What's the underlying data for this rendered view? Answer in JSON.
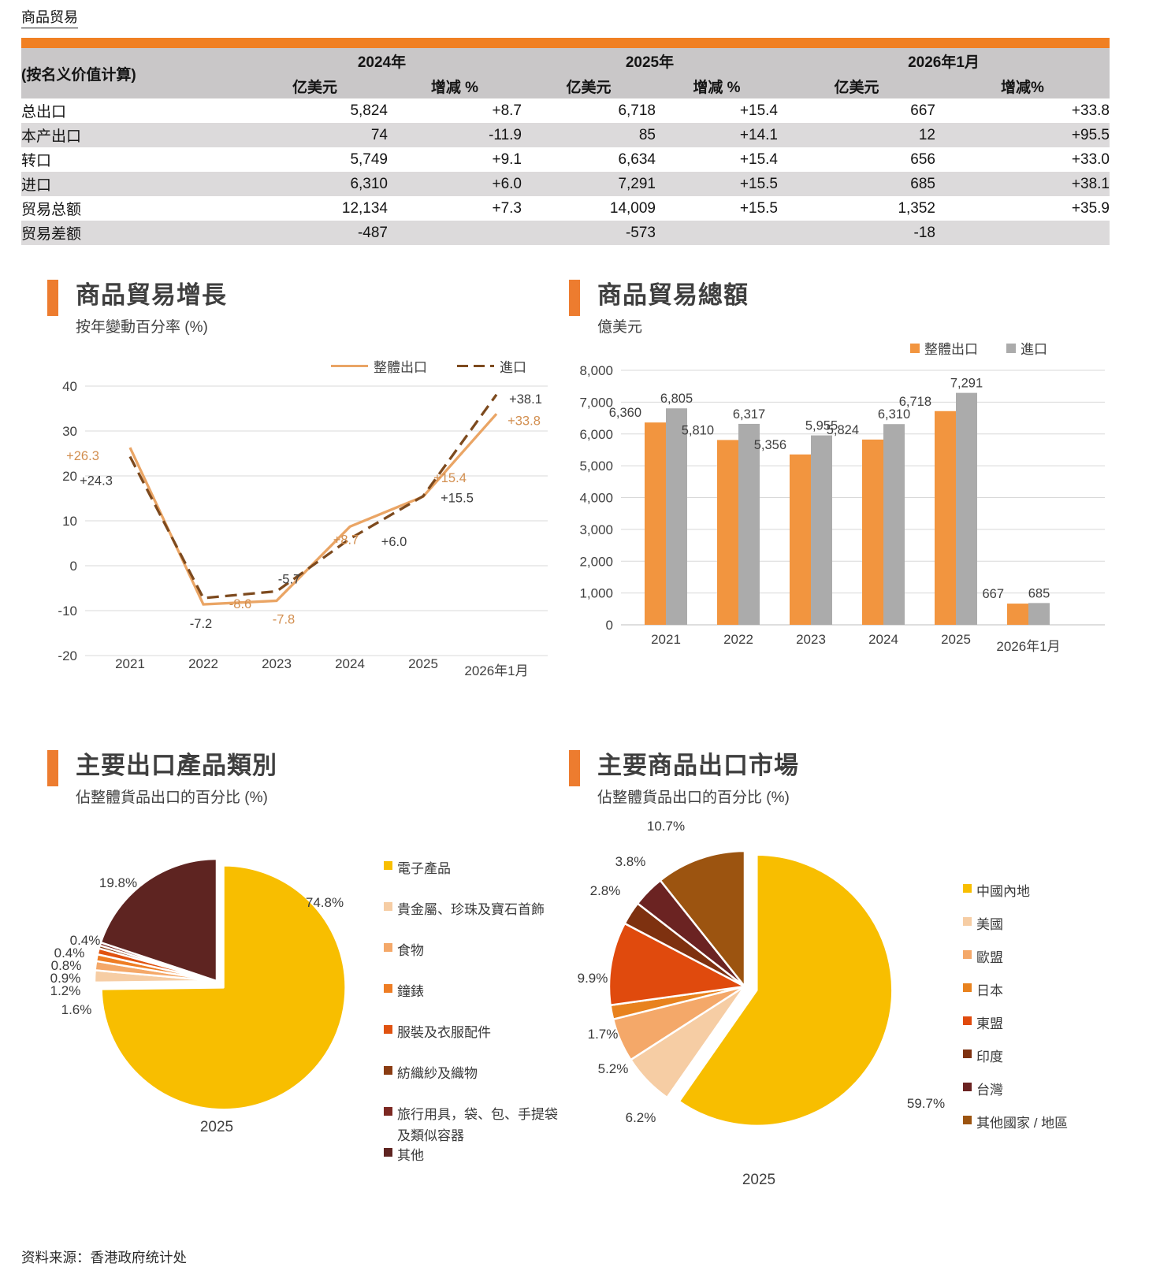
{
  "page": {
    "title": "商品贸易",
    "source": "资料来源：香港政府统计处"
  },
  "table": {
    "corner_label": "(按名义价值计算)",
    "col_groups": [
      {
        "label": "2024年"
      },
      {
        "label": "2025年"
      },
      {
        "label": "2026年1月"
      }
    ],
    "sub_headers": [
      "亿美元",
      "增减 %",
      "亿美元",
      "增减 %",
      "亿美元",
      "增减%"
    ],
    "rows": [
      {
        "label": "总出口",
        "indent": false,
        "values": [
          "5,824",
          "+8.7",
          "6,718",
          "+15.4",
          "667",
          "+33.8"
        ]
      },
      {
        "label": "本产出口",
        "indent": true,
        "values": [
          "74",
          "-11.9",
          "85",
          "+14.1",
          "12",
          "+95.5"
        ]
      },
      {
        "label": "转口",
        "indent": true,
        "values": [
          "5,749",
          "+9.1",
          "6,634",
          "+15.4",
          "656",
          "+33.0"
        ]
      },
      {
        "label": "进口",
        "indent": false,
        "values": [
          "6,310",
          "+6.0",
          "7,291",
          "+15.5",
          "685",
          "+38.1"
        ]
      },
      {
        "label": "贸易总额",
        "indent": false,
        "values": [
          "12,134",
          "+7.3",
          "14,009",
          "+15.5",
          "1,352",
          "+35.9"
        ]
      },
      {
        "label": "贸易差额",
        "indent": false,
        "values": [
          "-487",
          "",
          "-573",
          "",
          "-18",
          ""
        ]
      }
    ]
  },
  "chart_data": [
    {
      "type": "line",
      "title": "商品貿易增長",
      "subtitle": "按年變動百分率 (%)",
      "categories": [
        "2021",
        "2022",
        "2023",
        "2024",
        "2025",
        "2026年1月"
      ],
      "ylim": [
        -20,
        40
      ],
      "ytick_step": 10,
      "grid": true,
      "legend_position": "top-right",
      "series": [
        {
          "name": "整體出口",
          "style": "solid",
          "color": "#EAA565",
          "label_color": "#D28E4F",
          "values": [
            26.3,
            -8.6,
            -7.8,
            8.7,
            15.4,
            33.8
          ],
          "labels": [
            "+26.3",
            "-8.6",
            "-7.8",
            "+8.7",
            "+15.4",
            "+33.8"
          ],
          "label_offsets": [
            [
              -60,
              10
            ],
            [
              47,
              -1
            ],
            [
              9,
              23
            ],
            [
              -5,
              16
            ],
            [
              34,
              -24
            ],
            [
              35,
              8
            ]
          ]
        },
        {
          "name": "進口",
          "style": "dashed",
          "color": "#7D4A1E",
          "label_color": "#3D3D3D",
          "values": [
            24.3,
            -7.2,
            -5.7,
            6.0,
            15.5,
            38.1
          ],
          "labels": [
            "+24.3",
            "-7.2",
            "-5.7",
            "+6.0",
            "+15.5",
            "+38.1"
          ],
          "label_offsets": [
            [
              -43,
              30
            ],
            [
              -3,
              32
            ],
            [
              16,
              -16
            ],
            [
              56,
              3
            ],
            [
              43,
              2
            ],
            [
              37,
              5
            ]
          ]
        }
      ]
    },
    {
      "type": "bar",
      "title": "商品貿易總額",
      "subtitle": "億美元",
      "categories": [
        "2021",
        "2022",
        "2023",
        "2024",
        "2025",
        "2026年1月"
      ],
      "ylim": [
        0,
        8000
      ],
      "ytick_step": 1000,
      "grid": true,
      "legend_position": "top-right",
      "series": [
        {
          "name": "整體出口",
          "color": "#F2953F",
          "values": [
            6360,
            5810,
            5356,
            5824,
            6718,
            667
          ],
          "labels": [
            "6,360",
            "5,810",
            "5,356",
            "5,824",
            "6,718",
            "667"
          ]
        },
        {
          "name": "進口",
          "color": "#ABABAB",
          "values": [
            6805,
            6317,
            5955,
            6310,
            7291,
            685
          ],
          "labels": [
            "6,805",
            "6,317",
            "5,955",
            "6,310",
            "7,291",
            "685"
          ]
        }
      ]
    },
    {
      "type": "pie",
      "title": "主要出口產品類別",
      "subtitle": "佔整體貨品出口的百分比 (%)",
      "caption": "2025",
      "layout": {
        "center": [
          225,
          205
        ],
        "radius": 155,
        "explode": 12
      },
      "slices": [
        {
          "name": "電子產品",
          "pct": 74.8,
          "label": "74.8%",
          "color": "#F8BE00",
          "exploded": true,
          "label_pos": [
            362,
            105
          ]
        },
        {
          "name": "貴金屬、珍珠及寶石首飾",
          "pct": 1.6,
          "label": "1.6%",
          "color": "#F6CDA4",
          "label_pos": [
            47,
            241
          ]
        },
        {
          "name": "食物",
          "pct": 1.2,
          "label": "1.2%",
          "color": "#F4A869",
          "label_pos": [
            33,
            217
          ]
        },
        {
          "name": "鐘錶",
          "pct": 0.9,
          "label": "0.9%",
          "color": "#EE7D24",
          "label_pos": [
            33,
            201
          ]
        },
        {
          "name": "服裝及衣服配件",
          "pct": 0.8,
          "label": "0.8%",
          "color": "#E05210",
          "label_pos": [
            34,
            185
          ]
        },
        {
          "name": "紡織紗及織物",
          "pct": 0.4,
          "label": "0.4%",
          "color": "#8A3C12",
          "label_pos": [
            38,
            169
          ]
        },
        {
          "name": "旅行用具，袋、包、手提袋及類似容器",
          "pct": 0.4,
          "label": "0.4%",
          "color": "#7C2822",
          "label_pos": [
            58,
            153
          ]
        },
        {
          "name": "其他",
          "pct": 19.8,
          "label": "19.8%",
          "color": "#5E2421",
          "label_pos": [
            100,
            80
          ]
        }
      ]
    },
    {
      "type": "pie",
      "title": "主要商品出口市場",
      "subtitle": "佔整體貨品出口的百分比 (%)",
      "caption": "2025",
      "layout": {
        "center": [
          220,
          222
        ],
        "radius": 172,
        "explode": 16
      },
      "slices": [
        {
          "name": "中國內地",
          "pct": 59.7,
          "label": "59.7%",
          "color": "#F8BE00",
          "exploded": true,
          "label_pos": [
            450,
            370
          ]
        },
        {
          "name": "美國",
          "pct": 6.2,
          "label": "6.2%",
          "color": "#F6CDA4",
          "label_pos": [
            88,
            388
          ]
        },
        {
          "name": "歐盟",
          "pct": 5.2,
          "label": "5.2%",
          "color": "#F4A869",
          "label_pos": [
            53,
            326
          ]
        },
        {
          "name": "日本",
          "pct": 1.7,
          "label": "1.7%",
          "color": "#E8821E",
          "label_pos": [
            40,
            282
          ]
        },
        {
          "name": "東盟",
          "pct": 9.9,
          "label": "9.9%",
          "color": "#E04A0D",
          "label_pos": [
            27,
            211
          ]
        },
        {
          "name": "印度",
          "pct": 2.8,
          "label": "2.8%",
          "color": "#7E3110",
          "label_pos": [
            43,
            100
          ]
        },
        {
          "name": "台灣",
          "pct": 3.8,
          "label": "3.8%",
          "color": "#6B2322",
          "label_pos": [
            75,
            63
          ]
        },
        {
          "name": "其他國家 / 地區",
          "pct": 10.7,
          "label": "10.7%",
          "color": "#9C5410",
          "label_pos": [
            120,
            18
          ]
        }
      ]
    }
  ]
}
